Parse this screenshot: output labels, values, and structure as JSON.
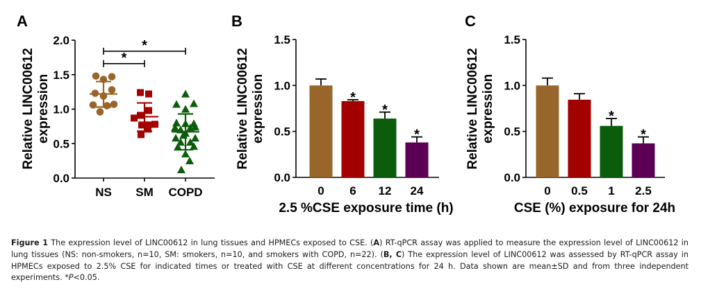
{
  "figure_label": "Figure 1",
  "caption": {
    "lead": "Figure 1",
    "segments": [
      {
        "t": " The expression level of LINC00612 in lung tissues and HPMECs exposed to CSE. (",
        "s": "n"
      },
      {
        "t": "A",
        "s": "b"
      },
      {
        "t": ") RT-qPCR assay was applied to measure the expression level of LINC00612 in lung tissues (NS: non-smokers, n=10, SM: smokers, n=10, and smokers with COPD, n=22). (",
        "s": "n"
      },
      {
        "t": "B, C",
        "s": "b"
      },
      {
        "t": ") The expression level of LINC00612 was assessed by RT-qPCR assay in HPMECs exposed to 2.5% CSE for indicated times or treated with CSE at different concentrations for 24 h. Data shown are mean±SD and from three independent experiments. *",
        "s": "n"
      },
      {
        "t": "P",
        "s": "i"
      },
      {
        "t": "<0.05.",
        "s": "n"
      }
    ]
  },
  "colors": {
    "brown": "#98662a",
    "red": "#a30000",
    "green": "#0b5c0b",
    "purple": "#5b0054",
    "axis": "#000000"
  },
  "chart_data": [
    {
      "panel": "A",
      "type": "scatter",
      "title": "",
      "ylabel_lines": [
        "Relative LINC00612",
        "expression"
      ],
      "xlabel": "",
      "ylim": [
        0,
        2.0
      ],
      "yticks": [
        "0.0",
        "0.5",
        "1.0",
        "1.5",
        "2.0"
      ],
      "ytick_values": [
        0,
        0.5,
        1.0,
        1.5,
        2.0
      ],
      "grid": false,
      "categories": [
        "NS",
        "SM",
        "COPD"
      ],
      "series": [
        {
          "name": "NS",
          "marker": "circle",
          "color_key": "brown",
          "values": [
            1.48,
            1.43,
            1.47,
            1.23,
            1.28,
            1.19,
            1.06,
            1.05,
            1.07,
            0.96
          ],
          "mean": 1.22,
          "sd_upper": 1.4,
          "sd_lower": 1.03
        },
        {
          "name": "SM",
          "marker": "square",
          "color_key": "red",
          "values": [
            1.24,
            1.22,
            0.98,
            0.87,
            0.91,
            0.77,
            0.77,
            0.78,
            0.71,
            0.63
          ],
          "mean": 0.89,
          "sd_upper": 1.09,
          "sd_lower": 0.68
        },
        {
          "name": "COPD",
          "marker": "triangle",
          "color_key": "green",
          "values": [
            1.22,
            1.07,
            1.08,
            1.0,
            0.8,
            0.79,
            0.79,
            0.73,
            0.7,
            0.73,
            0.74,
            0.65,
            0.62,
            0.58,
            0.58,
            0.52,
            0.52,
            0.46,
            0.45,
            0.35,
            0.25,
            0.12
          ],
          "mean": 0.67,
          "sd_upper": 0.93,
          "sd_lower": 0.41
        }
      ],
      "significance": [
        {
          "from": "NS",
          "to": "COPD",
          "label": "*",
          "y": 1.84
        },
        {
          "from": "NS",
          "to": "SM",
          "label": "*",
          "y": 1.66
        }
      ]
    },
    {
      "panel": "B",
      "type": "bar",
      "title": "",
      "ylabel_lines": [
        "Relative LINC00612",
        "expression"
      ],
      "xlabel": "2.5 %CSE exposure time (h)",
      "ylim": [
        0,
        1.5
      ],
      "yticks": [
        "0.0",
        "0.5",
        "1.0",
        "1.5"
      ],
      "ytick_values": [
        0,
        0.5,
        1.0,
        1.5
      ],
      "grid": false,
      "categories": [
        "0",
        "6",
        "12",
        "24"
      ],
      "values": [
        1.0,
        0.83,
        0.64,
        0.38
      ],
      "errors": [
        0.07,
        0.015,
        0.07,
        0.06
      ],
      "color_keys": [
        "brown",
        "red",
        "green",
        "purple"
      ],
      "stars": [
        "",
        "*",
        "*",
        "*"
      ]
    },
    {
      "panel": "C",
      "type": "bar",
      "title": "",
      "ylabel_lines": [
        "Relative LINC00612",
        "expression"
      ],
      "xlabel": "CSE (%) exposure for 24h",
      "ylim": [
        0,
        1.5
      ],
      "yticks": [
        "0.0",
        "0.5",
        "1.0",
        "1.5"
      ],
      "ytick_values": [
        0,
        0.5,
        1.0,
        1.5
      ],
      "grid": false,
      "categories": [
        "0",
        "0.5",
        "1",
        "2.5"
      ],
      "values": [
        1.0,
        0.845,
        0.56,
        0.37
      ],
      "errors": [
        0.08,
        0.065,
        0.08,
        0.07
      ],
      "color_keys": [
        "brown",
        "red",
        "green",
        "purple"
      ],
      "stars": [
        "",
        "",
        "*",
        "*"
      ]
    }
  ]
}
